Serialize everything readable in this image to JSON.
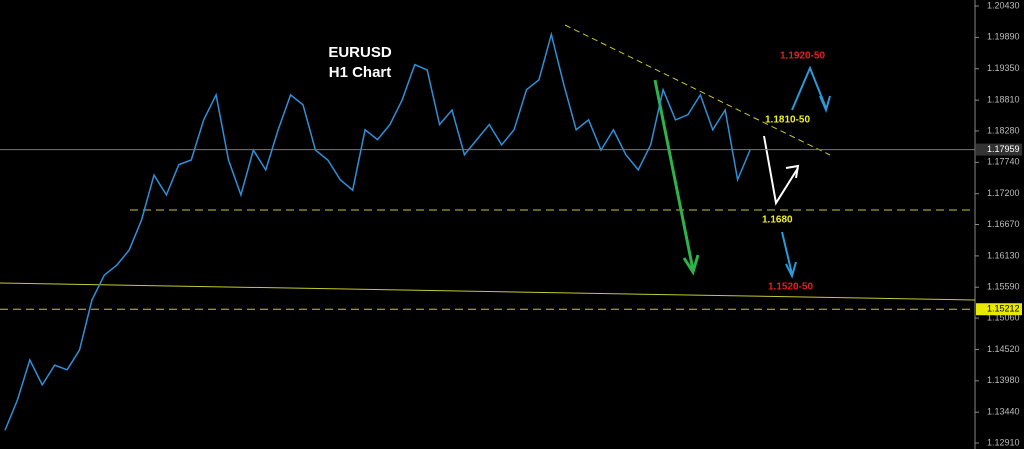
{
  "chart_data": {
    "type": "line",
    "series": [
      {
        "name": "EURUSD",
        "color": "#2f8fd8",
        "values": [
          1.1313,
          1.1365,
          1.1434,
          1.1391,
          1.1425,
          1.1417,
          1.1451,
          1.1537,
          1.158,
          1.1597,
          1.1623,
          1.1675,
          1.1752,
          1.1718,
          1.177,
          1.1778,
          1.1847,
          1.189,
          1.1778,
          1.1718,
          1.1795,
          1.1761,
          1.183,
          1.189,
          1.1873,
          1.1795,
          1.1778,
          1.1744,
          1.1726,
          1.183,
          1.1813,
          1.1839,
          1.1882,
          1.1942,
          1.1933,
          1.1839,
          1.1864,
          1.1787,
          1.1813,
          1.1839,
          1.1804,
          1.183,
          1.1899,
          1.1916,
          1.1994,
          1.1908,
          1.183,
          1.1847,
          1.1795,
          1.183,
          1.1787,
          1.1761,
          1.1804,
          1.1899,
          1.1847,
          1.1856,
          1.189,
          1.183,
          1.1864,
          1.1744,
          1.1795
        ]
      }
    ],
    "ylim": [
      1.12807,
      1.20533
    ],
    "yticks": [
      {
        "value": 1.2043,
        "label": "1.20430"
      },
      {
        "value": 1.1989,
        "label": "1.19890"
      },
      {
        "value": 1.1935,
        "label": "1.19350"
      },
      {
        "value": 1.1881,
        "label": "1.18810"
      },
      {
        "value": 1.1828,
        "label": "1.18280"
      },
      {
        "value": 1.1774,
        "label": "1.17740"
      },
      {
        "value": 1.172,
        "label": "1.17200"
      },
      {
        "value": 1.1667,
        "label": "1.16670"
      },
      {
        "value": 1.1613,
        "label": "1.16130"
      },
      {
        "value": 1.1559,
        "label": "1.15590"
      },
      {
        "value": 1.1506,
        "label": "1.15060"
      },
      {
        "value": 1.1452,
        "label": "1.14520"
      },
      {
        "value": 1.1398,
        "label": "1.13980"
      },
      {
        "value": 1.1344,
        "label": "1.13440"
      },
      {
        "value": 1.1291,
        "label": "1.12910"
      }
    ],
    "price_markers": [
      1.17959,
      1.15212
    ],
    "annotations": [
      "EURUSD",
      "H1 Chart",
      "1.1920-50",
      "1.1810-50",
      "1.1680",
      "1.1520-50"
    ]
  }
}
